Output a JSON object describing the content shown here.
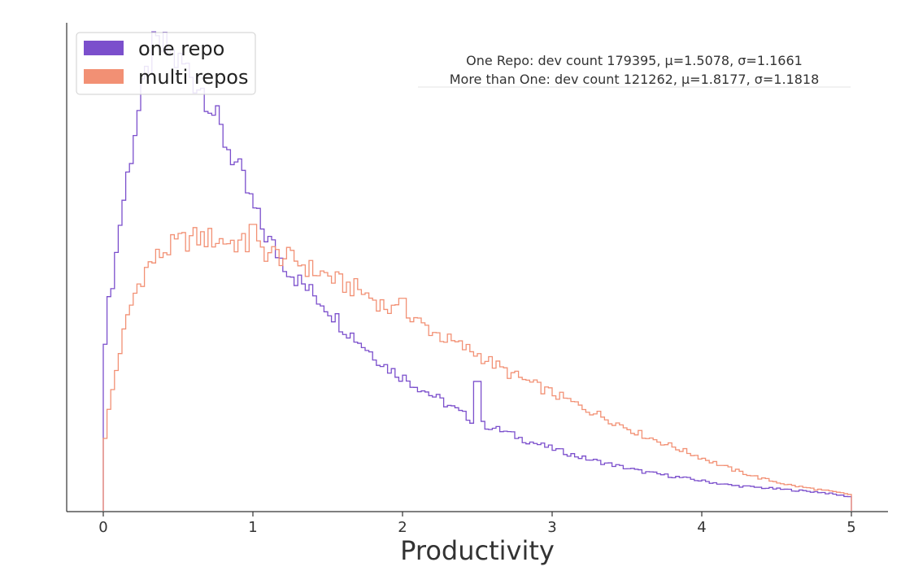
{
  "chart_data": {
    "type": "step-histogram",
    "xlabel": "Productivity",
    "xlim": [
      0,
      5
    ],
    "x_ticks": [
      0,
      1,
      2,
      3,
      4,
      5
    ],
    "y_ticks_visible": false,
    "grid": false,
    "legend": {
      "placement": "top-left",
      "entries": [
        {
          "label": "one repo",
          "color": "#7b4fcc"
        },
        {
          "label": "multi repos",
          "color": "#f29074"
        }
      ]
    },
    "annotation": [
      "One Repo: dev count 179395, μ=1.5078, σ=1.1661",
      "More than One: dev count 121262, μ=1.8177, σ=1.1818"
    ],
    "series": [
      {
        "name": "one repo",
        "color": "#7b4fcc",
        "points": [
          [
            0,
            0.34
          ],
          [
            0.02,
            0.4
          ],
          [
            0.05,
            0.48
          ],
          [
            0.08,
            0.53
          ],
          [
            0.1,
            0.6
          ],
          [
            0.12,
            0.64
          ],
          [
            0.15,
            0.7
          ],
          [
            0.18,
            0.76
          ],
          [
            0.2,
            0.8
          ],
          [
            0.22,
            0.84
          ],
          [
            0.25,
            0.88
          ],
          [
            0.28,
            0.92
          ],
          [
            0.3,
            0.96
          ],
          [
            0.33,
            0.99
          ],
          [
            0.36,
            1.0
          ],
          [
            0.4,
            1.0
          ],
          [
            0.45,
            0.99
          ],
          [
            0.5,
            0.97
          ],
          [
            0.55,
            0.96
          ],
          [
            0.6,
            0.94
          ],
          [
            0.65,
            0.92
          ],
          [
            0.7,
            0.9
          ],
          [
            0.75,
            0.85
          ],
          [
            0.8,
            0.81
          ],
          [
            0.85,
            0.78
          ],
          [
            0.9,
            0.74
          ],
          [
            0.95,
            0.7
          ],
          [
            1.0,
            0.66
          ],
          [
            1.05,
            0.62
          ],
          [
            1.1,
            0.59
          ],
          [
            1.2,
            0.54
          ],
          [
            1.3,
            0.5
          ],
          [
            1.4,
            0.47
          ],
          [
            1.5,
            0.44
          ],
          [
            1.6,
            0.4
          ],
          [
            1.7,
            0.37
          ],
          [
            1.8,
            0.34
          ],
          [
            1.9,
            0.31
          ],
          [
            2.0,
            0.29
          ],
          [
            2.1,
            0.27
          ],
          [
            2.2,
            0.25
          ],
          [
            2.3,
            0.23
          ],
          [
            2.4,
            0.21
          ],
          [
            2.5,
            0.19
          ],
          [
            2.6,
            0.18
          ],
          [
            2.7,
            0.17
          ],
          [
            2.8,
            0.155
          ],
          [
            2.9,
            0.145
          ],
          [
            3.0,
            0.135
          ],
          [
            3.2,
            0.115
          ],
          [
            3.4,
            0.1
          ],
          [
            3.6,
            0.085
          ],
          [
            3.8,
            0.075
          ],
          [
            4.0,
            0.065
          ],
          [
            4.2,
            0.055
          ],
          [
            4.4,
            0.05
          ],
          [
            4.6,
            0.045
          ],
          [
            4.8,
            0.04
          ],
          [
            5.0,
            0.03
          ]
        ],
        "spikes": [
          [
            2.5,
            0.28
          ]
        ]
      },
      {
        "name": "multi repos",
        "color": "#f29074",
        "points": [
          [
            0,
            0.13
          ],
          [
            0.02,
            0.18
          ],
          [
            0.05,
            0.24
          ],
          [
            0.08,
            0.29
          ],
          [
            0.1,
            0.33
          ],
          [
            0.15,
            0.4
          ],
          [
            0.2,
            0.46
          ],
          [
            0.25,
            0.5
          ],
          [
            0.3,
            0.53
          ],
          [
            0.4,
            0.56
          ],
          [
            0.5,
            0.58
          ],
          [
            0.6,
            0.59
          ],
          [
            0.7,
            0.59
          ],
          [
            0.8,
            0.585
          ],
          [
            0.9,
            0.58
          ],
          [
            1.0,
            0.57
          ],
          [
            1.1,
            0.56
          ],
          [
            1.2,
            0.55
          ],
          [
            1.3,
            0.54
          ],
          [
            1.4,
            0.52
          ],
          [
            1.5,
            0.51
          ],
          [
            1.6,
            0.49
          ],
          [
            1.7,
            0.48
          ],
          [
            1.8,
            0.46
          ],
          [
            1.9,
            0.44
          ],
          [
            2.0,
            0.42
          ],
          [
            2.1,
            0.41
          ],
          [
            2.2,
            0.39
          ],
          [
            2.3,
            0.37
          ],
          [
            2.4,
            0.355
          ],
          [
            2.5,
            0.34
          ],
          [
            2.6,
            0.32
          ],
          [
            2.7,
            0.3
          ],
          [
            2.8,
            0.285
          ],
          [
            2.9,
            0.27
          ],
          [
            3.0,
            0.255
          ],
          [
            3.2,
            0.225
          ],
          [
            3.4,
            0.195
          ],
          [
            3.6,
            0.165
          ],
          [
            3.8,
            0.14
          ],
          [
            4.0,
            0.115
          ],
          [
            4.2,
            0.09
          ],
          [
            4.4,
            0.07
          ],
          [
            4.6,
            0.055
          ],
          [
            4.8,
            0.045
          ],
          [
            5.0,
            0.035
          ]
        ],
        "spikes": [
          [
            1.0,
            0.62
          ],
          [
            2.0,
            0.46
          ]
        ]
      }
    ]
  }
}
